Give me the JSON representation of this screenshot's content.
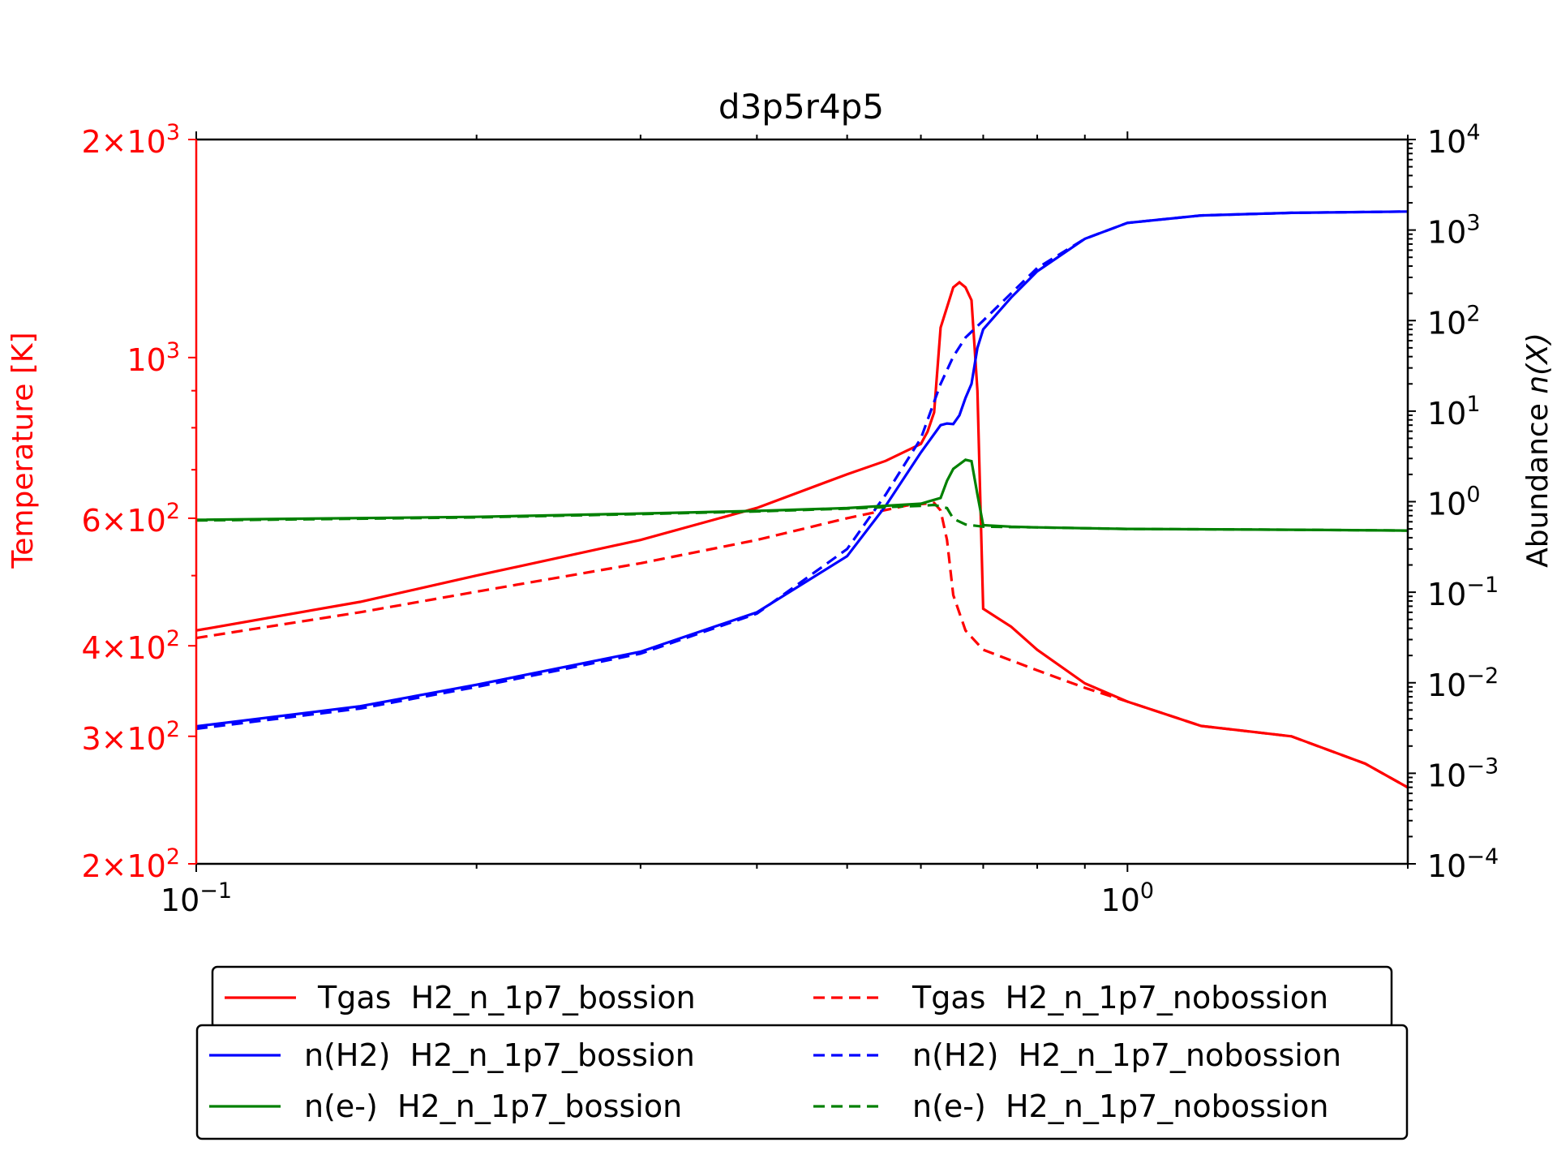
{
  "chart_data": {
    "type": "line",
    "title": "d3p5r4p5",
    "xscale": "log",
    "xlim": [
      0.1,
      2.0
    ],
    "x_ticks": [
      {
        "value": 0.1,
        "base": "10",
        "exp": "−1"
      },
      {
        "value": 1.0,
        "base": "10",
        "exp": "0"
      }
    ],
    "y_left": {
      "label": "Temperature [K]",
      "scale": "log",
      "lim": [
        200,
        2000
      ],
      "color": "#ff0000",
      "ticks": [
        {
          "value": 2000,
          "mant": "2",
          "exp": "3"
        },
        {
          "value": 1000,
          "mant": "",
          "exp": "3"
        },
        {
          "value": 600,
          "mant": "6",
          "exp": "2"
        },
        {
          "value": 400,
          "mant": "4",
          "exp": "2"
        },
        {
          "value": 300,
          "mant": "3",
          "exp": "2"
        },
        {
          "value": 200,
          "mant": "2",
          "exp": "2"
        }
      ]
    },
    "y_right": {
      "label_prefix": "Abundance ",
      "label_var": "n(X)",
      "scale": "log",
      "lim": [
        0.0001,
        10000
      ],
      "color": "#000000",
      "ticks": [
        {
          "value": 10000,
          "exp": "4"
        },
        {
          "value": 1000,
          "exp": "3"
        },
        {
          "value": 100,
          "exp": "2"
        },
        {
          "value": 10,
          "exp": "1"
        },
        {
          "value": 1,
          "exp": "0"
        },
        {
          "value": 0.1,
          "exp": "−1"
        },
        {
          "value": 0.01,
          "exp": "−2"
        },
        {
          "value": 0.001,
          "exp": "−3"
        },
        {
          "value": 0.0001,
          "exp": "−4"
        }
      ]
    },
    "series": [
      {
        "name": "Tgas  H2_n_1p7_bossion",
        "axis": "left",
        "color": "#ff0000",
        "dash": "solid",
        "x": [
          0.1,
          0.15,
          0.2,
          0.3,
          0.4,
          0.5,
          0.55,
          0.6,
          0.61,
          0.62,
          0.63,
          0.65,
          0.66,
          0.67,
          0.68,
          0.69,
          0.7,
          0.75,
          0.8,
          0.9,
          1.0,
          1.2,
          1.5,
          1.8,
          2.0
        ],
        "y": [
          420,
          460,
          500,
          560,
          620,
          690,
          720,
          760,
          790,
          840,
          1100,
          1250,
          1270,
          1250,
          1200,
          900,
          450,
          425,
          395,
          355,
          335,
          310,
          300,
          275,
          255
        ]
      },
      {
        "name": "Tgas  H2_n_1p7_nobossion",
        "axis": "left",
        "color": "#ff0000",
        "dash": "dashed",
        "x": [
          0.1,
          0.15,
          0.2,
          0.3,
          0.4,
          0.5,
          0.58,
          0.62,
          0.63,
          0.64,
          0.65,
          0.67,
          0.7,
          0.8,
          0.9,
          1.0,
          1.2,
          1.5,
          1.8,
          2.0
        ],
        "y": [
          410,
          445,
          475,
          520,
          560,
          600,
          625,
          630,
          615,
          560,
          470,
          420,
          395,
          370,
          350,
          335,
          310,
          300,
          275,
          255
        ]
      },
      {
        "name": "n(H2)  H2_n_1p7_bossion",
        "axis": "right",
        "color": "#0000ff",
        "dash": "solid",
        "x": [
          0.1,
          0.15,
          0.2,
          0.3,
          0.4,
          0.5,
          0.55,
          0.6,
          0.63,
          0.64,
          0.65,
          0.66,
          0.67,
          0.68,
          0.69,
          0.7,
          0.75,
          0.8,
          0.9,
          1.0,
          1.2,
          1.5,
          2.0
        ],
        "y": [
          0.0033,
          0.0055,
          0.0095,
          0.022,
          0.06,
          0.25,
          0.9,
          3.5,
          7.0,
          7.3,
          7.2,
          9.0,
          14.0,
          20.0,
          50.0,
          80.0,
          180.0,
          350.0,
          800.0,
          1200.0,
          1450.0,
          1550.0,
          1600.0
        ]
      },
      {
        "name": "n(H2)  H2_n_1p7_nobossion",
        "axis": "right",
        "color": "#0000ff",
        "dash": "dashed",
        "x": [
          0.1,
          0.15,
          0.2,
          0.3,
          0.4,
          0.5,
          0.55,
          0.6,
          0.63,
          0.65,
          0.67,
          0.7,
          0.75,
          0.8,
          0.9,
          1.0,
          1.2,
          1.5,
          2.0
        ],
        "y": [
          0.0031,
          0.0052,
          0.009,
          0.021,
          0.058,
          0.3,
          1.2,
          5.0,
          20.0,
          40.0,
          65.0,
          100.0,
          200.0,
          380.0,
          800.0,
          1200.0,
          1450.0,
          1550.0,
          1600.0
        ]
      },
      {
        "name": "n(e-)  H2_n_1p7_bossion",
        "axis": "right",
        "color": "#008000",
        "dash": "solid",
        "x": [
          0.1,
          0.2,
          0.3,
          0.4,
          0.5,
          0.6,
          0.63,
          0.64,
          0.65,
          0.67,
          0.68,
          0.69,
          0.7,
          0.75,
          0.8,
          1.0,
          1.5,
          2.0
        ],
        "y": [
          0.63,
          0.68,
          0.74,
          0.79,
          0.85,
          0.95,
          1.1,
          1.7,
          2.3,
          2.9,
          2.8,
          1.2,
          0.55,
          0.53,
          0.52,
          0.5,
          0.49,
          0.48
        ]
      },
      {
        "name": "n(e-)  H2_n_1p7_nobossion",
        "axis": "right",
        "color": "#008000",
        "dash": "dashed",
        "x": [
          0.1,
          0.2,
          0.3,
          0.4,
          0.5,
          0.6,
          0.62,
          0.64,
          0.65,
          0.67,
          0.7,
          0.8,
          1.0,
          1.5,
          2.0
        ],
        "y": [
          0.62,
          0.67,
          0.73,
          0.78,
          0.84,
          0.9,
          0.92,
          0.85,
          0.65,
          0.56,
          0.53,
          0.52,
          0.5,
          0.49,
          0.48
        ]
      }
    ],
    "legend_placement": "below plot"
  }
}
